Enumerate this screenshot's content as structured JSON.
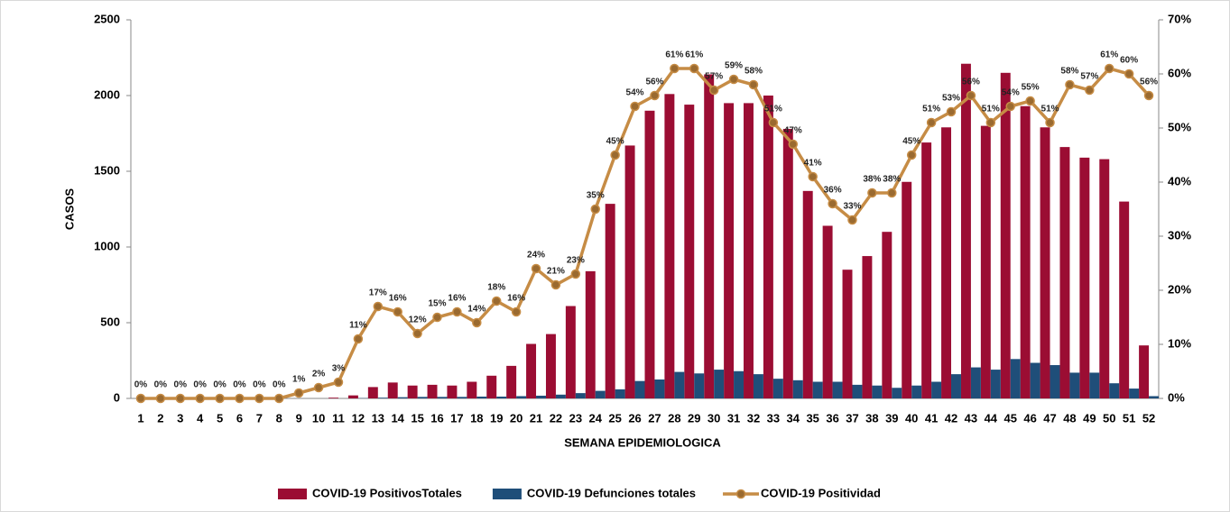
{
  "chart_data": {
    "type": "bar-line",
    "x_label": "SEMANA EPIDEMIOLOGICA",
    "y_label": "CASOS",
    "categories": [
      "1",
      "2",
      "3",
      "4",
      "5",
      "6",
      "7",
      "8",
      "9",
      "10",
      "11",
      "12",
      "13",
      "14",
      "15",
      "16",
      "17",
      "18",
      "19",
      "20",
      "21",
      "22",
      "23",
      "24",
      "25",
      "26",
      "27",
      "28",
      "29",
      "30",
      "31",
      "32",
      "33",
      "34",
      "35",
      "36",
      "37",
      "38",
      "39",
      "40",
      "41",
      "42",
      "43",
      "44",
      "45",
      "46",
      "47",
      "48",
      "49",
      "50",
      "51",
      "52"
    ],
    "ylim": [
      0,
      2500
    ],
    "yticks": [
      0,
      500,
      1000,
      1500,
      2000,
      2500
    ],
    "y2lim": [
      0,
      70
    ],
    "y2ticks": [
      {
        "value": 0,
        "label": "0%"
      },
      {
        "value": 10,
        "label": "10%"
      },
      {
        "value": 20,
        "label": "20%"
      },
      {
        "value": 30,
        "label": "30%"
      },
      {
        "value": 40,
        "label": "40%"
      },
      {
        "value": 50,
        "label": "50%"
      },
      {
        "value": 60,
        "label": "60%"
      },
      {
        "value": 70,
        "label": "70%"
      }
    ],
    "series": [
      {
        "name": "COVID-19 PositivosTotales",
        "color": "#9b0d33",
        "type": "bar",
        "values": [
          0,
          0,
          0,
          0,
          0,
          0,
          0,
          0,
          0,
          0,
          5,
          20,
          75,
          105,
          85,
          90,
          85,
          110,
          150,
          215,
          360,
          425,
          610,
          840,
          1285,
          1670,
          1900,
          2010,
          1940,
          2140,
          1950,
          1950,
          2000,
          1780,
          1370,
          1140,
          850,
          940,
          1100,
          1430,
          1690,
          1790,
          2210,
          1800,
          2150,
          1930,
          1790,
          1660,
          1590,
          1580,
          1300,
          350
        ]
      },
      {
        "name": "COVID-19 Defunciones totales",
        "color": "#1f4e79",
        "type": "bar",
        "values": [
          0,
          0,
          0,
          0,
          0,
          0,
          0,
          0,
          0,
          0,
          0,
          2,
          5,
          8,
          10,
          10,
          10,
          12,
          12,
          15,
          18,
          25,
          35,
          50,
          60,
          115,
          125,
          175,
          165,
          190,
          180,
          160,
          130,
          120,
          110,
          110,
          90,
          85,
          70,
          85,
          110,
          160,
          205,
          190,
          260,
          235,
          220,
          170,
          170,
          100,
          65,
          15
        ]
      },
      {
        "name": "COVID-19 Positividad",
        "color": "#c68c45",
        "marker_color": "#9a6a30",
        "type": "line",
        "axis": "y2",
        "values": [
          0,
          0,
          0,
          0,
          0,
          0,
          0,
          0,
          1,
          2,
          3,
          11,
          17,
          16,
          12,
          15,
          16,
          14,
          18,
          16,
          24,
          21,
          23,
          35,
          45,
          54,
          56,
          61,
          61,
          57,
          59,
          58,
          51,
          47,
          41,
          36,
          33,
          38,
          38,
          45,
          51,
          53,
          56,
          51,
          54,
          55,
          51,
          58,
          57,
          61,
          60,
          56
        ],
        "value_labels": [
          "0%",
          "0%",
          "0%",
          "0%",
          "0%",
          "0%",
          "0%",
          "0%",
          "1%",
          "2%",
          "3%",
          "11%",
          "17%",
          "16%",
          "12%",
          "15%",
          "16%",
          "14%",
          "18%",
          "16%",
          "24%",
          "21%",
          "23%",
          "35%",
          "45%",
          "54%",
          "56%",
          "61%",
          "61%",
          "57%",
          "59%",
          "58%",
          "51%",
          "47%",
          "41%",
          "36%",
          "33%",
          "38%",
          "38%",
          "45%",
          "51%",
          "53%",
          "56%",
          "51%",
          "54%",
          "55%",
          "51%",
          "58%",
          "57%",
          "61%",
          "60%",
          "56%"
        ]
      }
    ]
  }
}
